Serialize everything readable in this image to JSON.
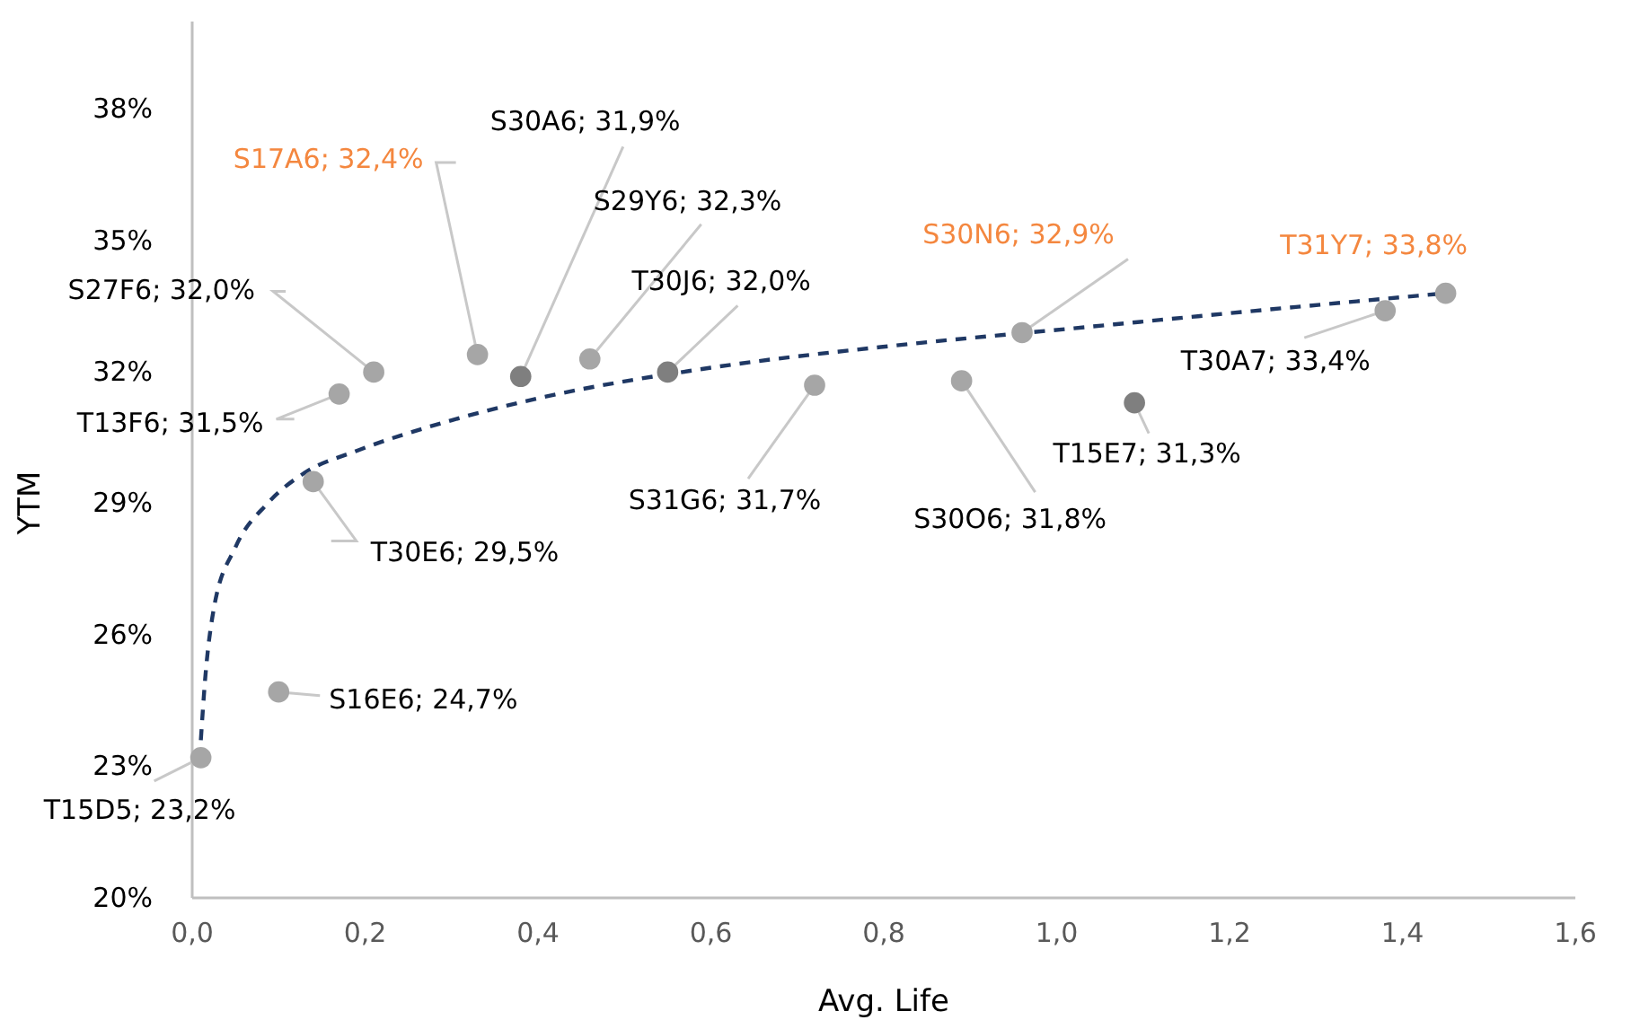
{
  "chart_data": {
    "type": "scatter",
    "xlabel": "Avg. Life",
    "ylabel": "YTM",
    "xlim": [
      0,
      1.6
    ],
    "xticks": [
      {
        "value": 0,
        "label": "0,0"
      },
      {
        "value": 0.2,
        "label": "0,2"
      },
      {
        "value": 0.4,
        "label": "0,4"
      },
      {
        "value": 0.6,
        "label": "0,6"
      },
      {
        "value": 0.8,
        "label": "0,8"
      },
      {
        "value": 1,
        "label": "1,0"
      },
      {
        "value": 1.2,
        "label": "1,2"
      },
      {
        "value": 1.4,
        "label": "1,4"
      },
      {
        "value": 1.6,
        "label": "1,6"
      }
    ],
    "ylim": [
      20,
      40
    ],
    "yticks": [
      {
        "value": 20,
        "label": "20%"
      },
      {
        "value": 23,
        "label": "23%"
      },
      {
        "value": 26,
        "label": "26%"
      },
      {
        "value": 29,
        "label": "29%"
      },
      {
        "value": 32,
        "label": "32%"
      },
      {
        "value": 35,
        "label": "35%"
      },
      {
        "value": 38,
        "label": "38%"
      }
    ],
    "grid": false,
    "marker": "circle",
    "series": [
      {
        "color": "#a6a6a6",
        "x": [
          0.01,
          0.1,
          0.14,
          0.17,
          0.21,
          0.46,
          0.72,
          0.89,
          1.38
        ],
        "values": [
          23.2,
          24.7,
          29.5,
          31.5,
          32.0,
          32.3,
          31.7,
          31.8,
          33.4
        ]
      },
      {
        "color": "#7f7f7f",
        "x": [
          0.38,
          0.55,
          1.09
        ],
        "values": [
          31.9,
          32.0,
          31.3
        ]
      },
      {
        "color": "#a6a6a6",
        "x": [
          0.33,
          0.96,
          1.45
        ],
        "values": [
          32.4,
          32.9,
          33.8
        ]
      },
      {
        "type": "line",
        "color": "#1f3864",
        "line_style": "dashed",
        "marker": "none",
        "x": [
          0.01,
          0.015,
          0.025,
          0.05,
          0.087,
          0.13,
          0.19,
          0.3,
          0.4,
          0.6,
          0.81,
          1.02,
          1.23,
          1.45
        ],
        "values": [
          23.6,
          25.0,
          26.6,
          28.0,
          29.0,
          29.7,
          30.2,
          30.9,
          31.4,
          32.1,
          32.6,
          33.0,
          33.4,
          33.8
        ]
      }
    ],
    "annotations": [
      {
        "text": "T15D5; 23,2%",
        "x": 0.01,
        "y": 23.2
      },
      {
        "text": "S16E6; 24,7%",
        "x": 0.1,
        "y": 24.7
      },
      {
        "text": "T30E6; 29,5%",
        "x": 0.14,
        "y": 29.5
      },
      {
        "text": "T13F6; 31,5%",
        "x": 0.17,
        "y": 31.5
      },
      {
        "text": "S27F6; 32,0%",
        "x": 0.21,
        "y": 32.0
      },
      {
        "text": "S17A6; 32,4%",
        "x": 0.33,
        "y": 32.4
      },
      {
        "text": "S30A6; 31,9%",
        "x": 0.38,
        "y": 31.9
      },
      {
        "text": "S29Y6; 32,3%",
        "x": 0.46,
        "y": 32.3
      },
      {
        "text": "T30J6; 32,0%",
        "x": 0.55,
        "y": 32.0
      },
      {
        "text": "S31G6; 31,7%",
        "x": 0.72,
        "y": 31.7
      },
      {
        "text": "S30O6; 31,8%",
        "x": 0.89,
        "y": 31.8
      },
      {
        "text": "S30N6; 32,9%",
        "x": 0.96,
        "y": 32.9
      },
      {
        "text": "T15E7; 31,3%",
        "x": 1.09,
        "y": 31.3
      },
      {
        "text": "T30A7; 33,4%",
        "x": 1.38,
        "y": 33.4
      },
      {
        "text": "T31Y7; 33,8%",
        "x": 1.45,
        "y": 33.8
      }
    ]
  }
}
